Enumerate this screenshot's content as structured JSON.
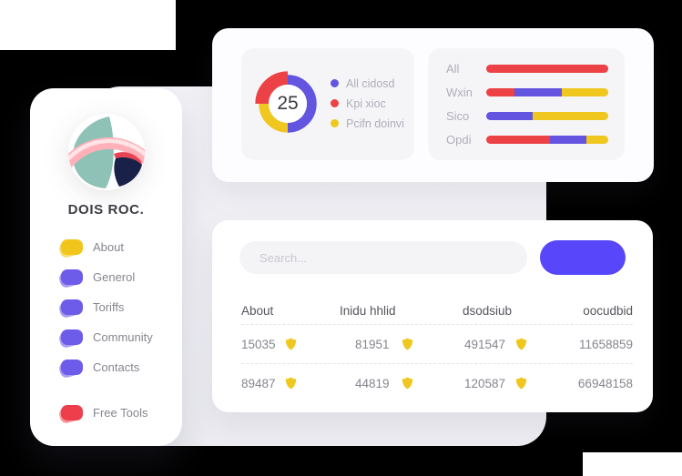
{
  "colors": {
    "page_background": "#000000",
    "canvas_background": "#EFEFF3",
    "card_background": "#FFFFFF",
    "panel_background": "#F5F5F8",
    "accent_button": "#5847FA",
    "chart_blue": "#6355E0",
    "chart_red": "#EC4145",
    "chart_yellow": "#EFC71E"
  },
  "sidebar": {
    "brand": "DOIS ROC.",
    "logo_colors": {
      "circle": "#FFFFFF",
      "teal": "#8FC2B7",
      "navy": "#1A2149",
      "red": "#EB4253",
      "pink": "#FFB0B9",
      "pink_light": "#FFE4E7"
    },
    "items": [
      {
        "label": "About",
        "color": "#F2C51D",
        "color_light": "#F7DC6A",
        "separated": false
      },
      {
        "label": "Generol",
        "color": "#6C5CE9",
        "color_light": "#A99DF3",
        "separated": false
      },
      {
        "label": "Toriffs",
        "color": "#6C5CE9",
        "color_light": "#A99DF3",
        "separated": false
      },
      {
        "label": "Community",
        "color": "#6C5CE9",
        "color_light": "#A99DF3",
        "separated": false
      },
      {
        "label": "Contacts",
        "color": "#6C5CE9",
        "color_light": "#A99DF3",
        "separated": false
      },
      {
        "label": "Free Tools",
        "color": "#EE3D4B",
        "color_light": "#F7949C",
        "separated": true
      }
    ]
  },
  "chart_data": [
    {
      "type": "donut",
      "center_value": "25",
      "legend_position": "right",
      "segments": [
        {
          "label": "All cidosd",
          "color": "#6355E0",
          "value": 50,
          "emphasis": false
        },
        {
          "label": "Kpi xioc",
          "color": "#EC4145",
          "value": 25,
          "emphasis": true
        },
        {
          "label": "Pcifn doinvi",
          "color": "#EFC71E",
          "value": 25,
          "emphasis": false
        }
      ],
      "draw_sequence": [
        0,
        2,
        1
      ],
      "start_angle_deg": -90
    },
    {
      "type": "stacked_bar_horizontal",
      "categories": [
        "All",
        "Wxin",
        "Sico",
        "Opdi"
      ],
      "series": [
        {
          "name": "Kpi xioc",
          "color": "#EC4145",
          "values": [
            100,
            23,
            0,
            52
          ]
        },
        {
          "name": "All cidosd",
          "color": "#6355E0",
          "values": [
            0,
            39,
            38,
            30
          ]
        },
        {
          "name": "Pcifn doinvi",
          "color": "#EFC71E",
          "values": [
            0,
            38,
            62,
            18
          ]
        }
      ],
      "x_range_pct": [
        0,
        100
      ],
      "grid": false,
      "legend": false
    }
  ],
  "table_card": {
    "search_placeholder": "Search...",
    "headers": [
      "About",
      "Inidu hhlid",
      "dsodsiub",
      "oocudbid"
    ],
    "badge_icon": "shield-icon",
    "badge_color": "#EFC71E",
    "rows": [
      [
        {
          "value": "15035",
          "badge": true
        },
        {
          "value": "81951",
          "badge": true
        },
        {
          "value": "491547",
          "badge": true
        },
        {
          "value": "11658859",
          "badge": false
        }
      ],
      [
        {
          "value": "89487",
          "badge": true
        },
        {
          "value": "44819",
          "badge": true
        },
        {
          "value": "120587",
          "badge": true
        },
        {
          "value": "66948158",
          "badge": false
        }
      ]
    ]
  }
}
